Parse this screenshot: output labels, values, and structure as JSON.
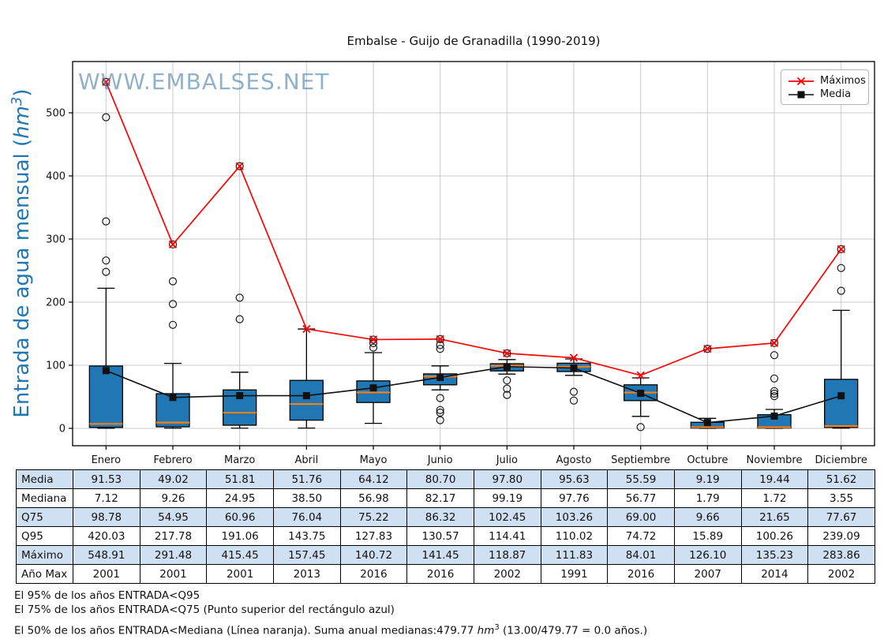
{
  "title": "Embalse - Guijo de Granadilla (1990-2019)",
  "watermark": "WWW.EMBALSES.NET",
  "y_axis": {
    "label_prefix": "Entrada de agua mensual (",
    "label_unit": "hm",
    "label_exp": "3",
    "label_suffix": ")"
  },
  "legend": {
    "items": [
      {
        "label": "Máximos",
        "color": "#ff0000",
        "marker": "x"
      },
      {
        "label": "Media",
        "color": "#000000",
        "marker": "square"
      }
    ]
  },
  "colors": {
    "box_fill": "#2077b4",
    "box_edge": "#000000",
    "median_line": "#ff7f0e",
    "max_line": "#ff0000",
    "mean_line": "#111111",
    "grid": "#c9c9c9",
    "axis_label_blue": "#1f77b4",
    "watermark_blue": "#4d82ab",
    "table_shaded": "#cfe0f2"
  },
  "chart_data": {
    "type": "boxplot",
    "title": "Embalse - Guijo de Granadilla (1990-2019)",
    "ylabel": "Entrada de agua mensual (hm3)",
    "categories": [
      "Enero",
      "Febrero",
      "Marzo",
      "Abril",
      "Mayo",
      "Junio",
      "Julio",
      "Agosto",
      "Septiembre",
      "Octubre",
      "Noviembre",
      "Diciembre"
    ],
    "yticks": [
      0,
      100,
      200,
      300,
      400,
      500
    ],
    "ylim": [
      -27.5,
      581.25
    ],
    "grid": true,
    "legend_position": "upper right",
    "series": [
      {
        "name": "Máximos",
        "values": [
          548.91,
          291.48,
          415.45,
          157.45,
          140.72,
          141.45,
          118.87,
          111.83,
          84.01,
          126.1,
          135.23,
          283.86
        ]
      },
      {
        "name": "Media",
        "values": [
          91.53,
          49.02,
          51.81,
          51.76,
          64.12,
          80.7,
          97.8,
          95.63,
          55.59,
          9.19,
          19.44,
          51.62
        ]
      }
    ],
    "boxes": [
      {
        "q1": 1.5,
        "median": 7.12,
        "q3": 98.78,
        "whisker_low": 0.2,
        "whisker_high": 222,
        "outliers": [
          248,
          266,
          328,
          493
        ],
        "max_outlier_circle": true
      },
      {
        "q1": 2.5,
        "median": 9.26,
        "q3": 54.95,
        "whisker_low": 0.3,
        "whisker_high": 103,
        "outliers": [
          164,
          197,
          233
        ],
        "max_outlier_circle": true
      },
      {
        "q1": 5,
        "median": 24.95,
        "q3": 60.96,
        "whisker_low": 0.3,
        "whisker_high": 89,
        "outliers": [
          173,
          207
        ],
        "max_outlier_circle": true
      },
      {
        "q1": 13,
        "median": 38.5,
        "q3": 76.04,
        "whisker_low": 0.5,
        "whisker_high": 157.45,
        "outliers": [],
        "max_outlier_circle": false
      },
      {
        "q1": 41,
        "median": 56.98,
        "q3": 75.22,
        "whisker_low": 8,
        "whisker_high": 120,
        "outliers": [
          128,
          135
        ],
        "max_outlier_circle": true
      },
      {
        "q1": 69,
        "median": 82.17,
        "q3": 86.32,
        "whisker_low": 61,
        "whisker_high": 99,
        "outliers": [
          13,
          25,
          29,
          48,
          126,
          132
        ],
        "max_outlier_circle": true
      },
      {
        "q1": 91,
        "median": 99.19,
        "q3": 102.45,
        "whisker_low": 86,
        "whisker_high": 109,
        "outliers": [
          53,
          63,
          76
        ],
        "max_outlier_circle": true
      },
      {
        "q1": 90,
        "median": 97.76,
        "q3": 103.26,
        "whisker_low": 84,
        "whisker_high": 110.02,
        "outliers": [
          44,
          58
        ],
        "max_outlier_circle": false
      },
      {
        "q1": 44,
        "median": 56.77,
        "q3": 69.0,
        "whisker_low": 19,
        "whisker_high": 80,
        "outliers": [
          2
        ],
        "max_outlier_circle": false
      },
      {
        "q1": 0.4,
        "median": 1.79,
        "q3": 9.66,
        "whisker_low": 0.05,
        "whisker_high": 15.89,
        "outliers": [],
        "max_outlier_circle": true
      },
      {
        "q1": 0.4,
        "median": 1.72,
        "q3": 21.65,
        "whisker_low": 0.05,
        "whisker_high": 30,
        "outliers": [
          51,
          55,
          59,
          79,
          116
        ],
        "max_outlier_circle": true
      },
      {
        "q1": 1.5,
        "median": 3.55,
        "q3": 77.67,
        "whisker_low": 0.3,
        "whisker_high": 187,
        "outliers": [
          218,
          254
        ],
        "max_outlier_circle": true
      }
    ]
  },
  "table": {
    "rows": [
      {
        "label": "Media",
        "shaded": true,
        "values": [
          "91.53",
          "49.02",
          "51.81",
          "51.76",
          "64.12",
          "80.70",
          "97.80",
          "95.63",
          "55.59",
          "9.19",
          "19.44",
          "51.62"
        ]
      },
      {
        "label": "Mediana",
        "shaded": false,
        "values": [
          "7.12",
          "9.26",
          "24.95",
          "38.50",
          "56.98",
          "82.17",
          "99.19",
          "97.76",
          "56.77",
          "1.79",
          "1.72",
          "3.55"
        ]
      },
      {
        "label": "Q75",
        "shaded": true,
        "values": [
          "98.78",
          "54.95",
          "60.96",
          "76.04",
          "75.22",
          "86.32",
          "102.45",
          "103.26",
          "69.00",
          "9.66",
          "21.65",
          "77.67"
        ]
      },
      {
        "label": "Q95",
        "shaded": false,
        "values": [
          "420.03",
          "217.78",
          "191.06",
          "143.75",
          "127.83",
          "130.57",
          "114.41",
          "110.02",
          "74.72",
          "15.89",
          "100.26",
          "239.09"
        ]
      },
      {
        "label": "Máximo",
        "shaded": true,
        "values": [
          "548.91",
          "291.48",
          "415.45",
          "157.45",
          "140.72",
          "141.45",
          "118.87",
          "111.83",
          "84.01",
          "126.10",
          "135.23",
          "283.86"
        ]
      },
      {
        "label": "Año Max",
        "shaded": false,
        "values": [
          "2001",
          "2001",
          "2001",
          "2013",
          "2016",
          "2016",
          "2002",
          "1991",
          "2016",
          "2007",
          "2014",
          "2002"
        ]
      }
    ]
  },
  "footnotes": {
    "line1": "El 95% de los años ENTRADA<Q95",
    "line2": "El 75% de los años ENTRADA<Q75 (Punto superior del rectángulo azul)",
    "line3_before": "El 50% de los años ENTRADA<Mediana (Línea naranja). Suma anual medianas:479.77 ",
    "line3_unit": "hm",
    "line3_exp": "3",
    "line3_after": " (13.00/479.77 = 0.0 años.)"
  }
}
